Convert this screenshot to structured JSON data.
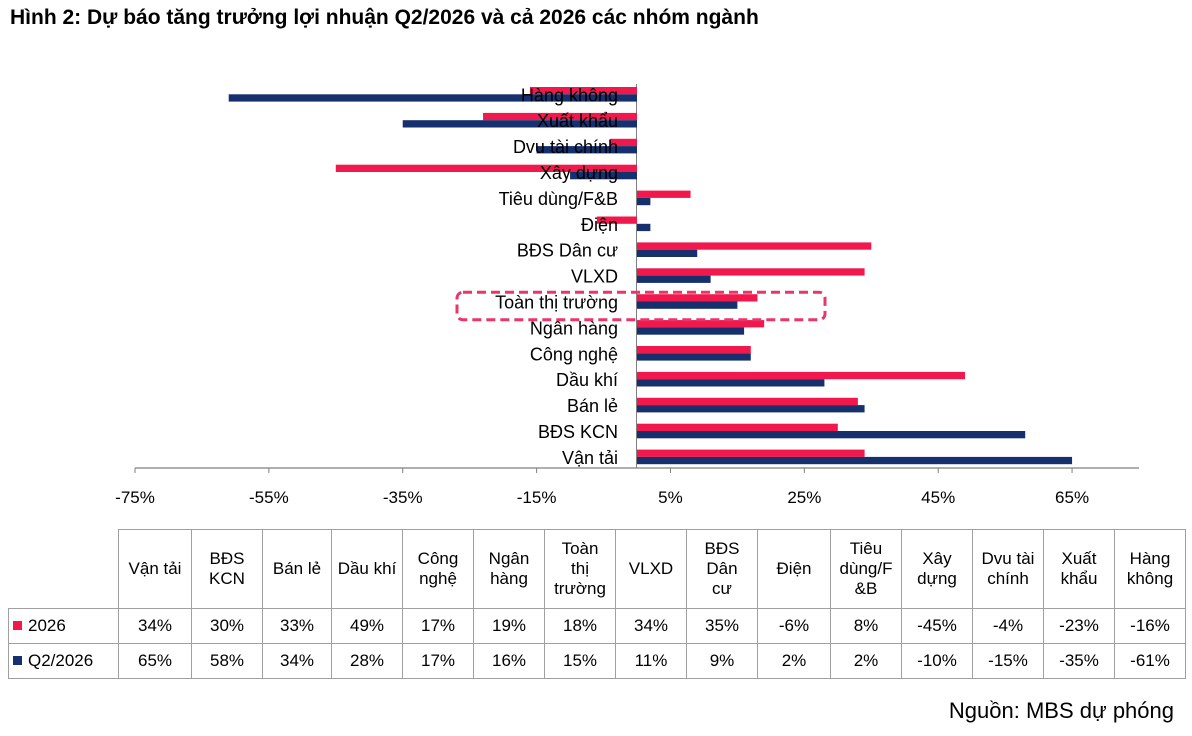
{
  "figure": {
    "title": "Hình 2: Dự báo tăng trưởng lợi nhuận Q2/2026 và cả 2026 các nhóm ngành",
    "source": "Nguồn: MBS dự phóng"
  },
  "colors": {
    "series_2026": "#f0184c",
    "series_q2": "#16306e",
    "highlight": "#e8356a",
    "axis": "#7f7f7f"
  },
  "chart_data": {
    "type": "bar",
    "orientation": "horizontal",
    "categories": [
      "Vận tải",
      "BĐS KCN",
      "Bán lẻ",
      "Dầu khí",
      "Công nghệ",
      "Ngân hàng",
      "Toàn thị trường",
      "VLXD",
      "BĐS Dân cư",
      "Điện",
      "Tiêu dùng/F&B",
      "Xây dựng",
      "Dvu tài chính",
      "Xuất khẩu",
      "Hàng không"
    ],
    "table_headers": [
      [
        "Vận tải"
      ],
      [
        "BĐS",
        "KCN"
      ],
      [
        "Bán lẻ"
      ],
      [
        "Dầu khí"
      ],
      [
        "Công",
        "nghệ"
      ],
      [
        "Ngân",
        "hàng"
      ],
      [
        "Toàn",
        "thị",
        "trường"
      ],
      [
        "VLXD"
      ],
      [
        "BĐS",
        "Dân",
        "cư"
      ],
      [
        "Điện"
      ],
      [
        "Tiêu",
        "dùng/F",
        "&B"
      ],
      [
        "Xây",
        "dựng"
      ],
      [
        "Dvu tài",
        "chính"
      ],
      [
        "Xuất",
        "khẩu"
      ],
      [
        "Hàng",
        "không"
      ]
    ],
    "series": [
      {
        "name": "2026",
        "values": [
          34,
          30,
          33,
          49,
          17,
          19,
          18,
          34,
          35,
          -6,
          8,
          -45,
          -4,
          -23,
          -16
        ],
        "labels": [
          "34%",
          "30%",
          "33%",
          "49%",
          "17%",
          "19%",
          "18%",
          "34%",
          "35%",
          "-6%",
          "8%",
          "-45%",
          "-4%",
          "-23%",
          "-16%"
        ]
      },
      {
        "name": "Q2/2026",
        "values": [
          65,
          58,
          34,
          28,
          17,
          16,
          15,
          11,
          9,
          2,
          2,
          -10,
          -15,
          -35,
          -61
        ],
        "labels": [
          "65%",
          "58%",
          "34%",
          "28%",
          "17%",
          "16%",
          "15%",
          "11%",
          "9%",
          "2%",
          "2%",
          "-10%",
          "-15%",
          "-35%",
          "-61%"
        ]
      }
    ],
    "xlim": [
      -75,
      75
    ],
    "xticks": [
      -75,
      -55,
      -35,
      -15,
      5,
      25,
      45,
      65
    ],
    "xtick_labels": [
      "-75%",
      "-55%",
      "-35%",
      "-15%",
      "5%",
      "25%",
      "45%",
      "65%"
    ],
    "highlighted_category": "Toàn thị trường",
    "legend": "table"
  }
}
